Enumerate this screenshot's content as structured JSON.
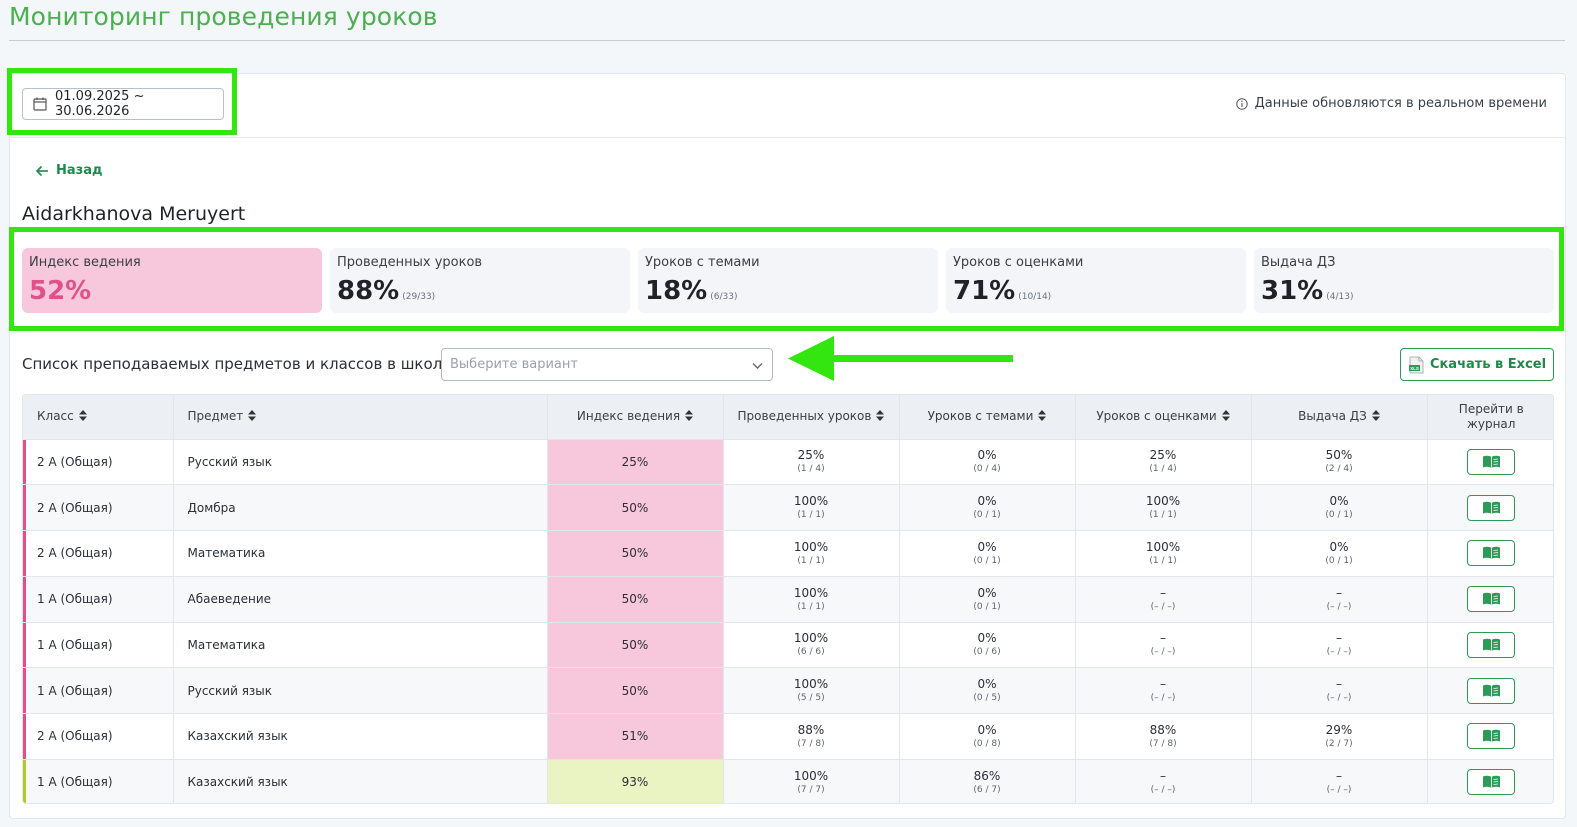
{
  "page_title": "Мониторинг проведения уроков",
  "date_range": "01.09.2025 ~ 30.06.2026",
  "realtime_note": "Данные обновляются в реальном времени",
  "back_label": "Назад",
  "teacher_name": "Aidarkhanova Meruyert",
  "stats": [
    {
      "label": "Индекс ведения",
      "value": "52%",
      "sub": ""
    },
    {
      "label": "Проведенных уроков",
      "value": "88%",
      "sub": "(29/33)"
    },
    {
      "label": "Уроков с темами",
      "value": "18%",
      "sub": "(6/33)"
    },
    {
      "label": "Уроков с оценками",
      "value": "71%",
      "sub": "(10/14)"
    },
    {
      "label": "Выдача ДЗ",
      "value": "31%",
      "sub": "(4/13)"
    }
  ],
  "list_label": "Список преподаваемых предметов и классов в школе",
  "select_placeholder": "Выберите вариант",
  "excel_label": "Скачать в Excel",
  "colors": {
    "accent": "#1d8a4a",
    "pink": "#f7c8dc",
    "pink_bar": "#e0508b",
    "green_cell": "#e9f4c2",
    "green_bar": "#b5c62a",
    "highlight": "#33e60f"
  },
  "table": {
    "headers": [
      "Класс",
      "Предмет",
      "Индекс ведения",
      "Проведенных уроков",
      "Уроков с темами",
      "Уроков с оценками",
      "Выдача ДЗ",
      "Перейти в журнал"
    ],
    "rows": [
      {
        "class": "2 А (Общая)",
        "subject": "Русский язык",
        "index": "25%",
        "level": "pink",
        "conducted": [
          "25%",
          "(1 / 4)"
        ],
        "topics": [
          "0%",
          "(0 / 4)"
        ],
        "grades": [
          "25%",
          "(1 / 4)"
        ],
        "hw": [
          "50%",
          "(2 / 4)"
        ]
      },
      {
        "class": "2 А (Общая)",
        "subject": "Домбра",
        "index": "50%",
        "level": "pink",
        "conducted": [
          "100%",
          "(1 / 1)"
        ],
        "topics": [
          "0%",
          "(0 / 1)"
        ],
        "grades": [
          "100%",
          "(1 / 1)"
        ],
        "hw": [
          "0%",
          "(0 / 1)"
        ]
      },
      {
        "class": "2 А (Общая)",
        "subject": "Математика",
        "index": "50%",
        "level": "pink",
        "conducted": [
          "100%",
          "(1 / 1)"
        ],
        "topics": [
          "0%",
          "(0 / 1)"
        ],
        "grades": [
          "100%",
          "(1 / 1)"
        ],
        "hw": [
          "0%",
          "(0 / 1)"
        ]
      },
      {
        "class": "1 А (Общая)",
        "subject": "Абаеведение",
        "index": "50%",
        "level": "pink",
        "conducted": [
          "100%",
          "(1 / 1)"
        ],
        "topics": [
          "0%",
          "(0 / 1)"
        ],
        "grades": [
          "–",
          "(– / –)"
        ],
        "hw": [
          "–",
          "(– / –)"
        ]
      },
      {
        "class": "1 А (Общая)",
        "subject": "Математика",
        "index": "50%",
        "level": "pink",
        "conducted": [
          "100%",
          "(6 / 6)"
        ],
        "topics": [
          "0%",
          "(0 / 6)"
        ],
        "grades": [
          "–",
          "(– / –)"
        ],
        "hw": [
          "–",
          "(– / –)"
        ]
      },
      {
        "class": "1 А (Общая)",
        "subject": "Русский язык",
        "index": "50%",
        "level": "pink",
        "conducted": [
          "100%",
          "(5 / 5)"
        ],
        "topics": [
          "0%",
          "(0 / 5)"
        ],
        "grades": [
          "–",
          "(– / –)"
        ],
        "hw": [
          "–",
          "(– / –)"
        ]
      },
      {
        "class": "2 А (Общая)",
        "subject": "Казахский язык",
        "index": "51%",
        "level": "pink",
        "conducted": [
          "88%",
          "(7 / 8)"
        ],
        "topics": [
          "0%",
          "(0 / 8)"
        ],
        "grades": [
          "88%",
          "(7 / 8)"
        ],
        "hw": [
          "29%",
          "(2 / 7)"
        ]
      },
      {
        "class": "1 А (Общая)",
        "subject": "Казахский язык",
        "index": "93%",
        "level": "green",
        "conducted": [
          "100%",
          "(7 / 7)"
        ],
        "topics": [
          "86%",
          "(6 / 7)"
        ],
        "grades": [
          "–",
          "(– / –)"
        ],
        "hw": [
          "–",
          "(– / –)"
        ]
      }
    ]
  }
}
